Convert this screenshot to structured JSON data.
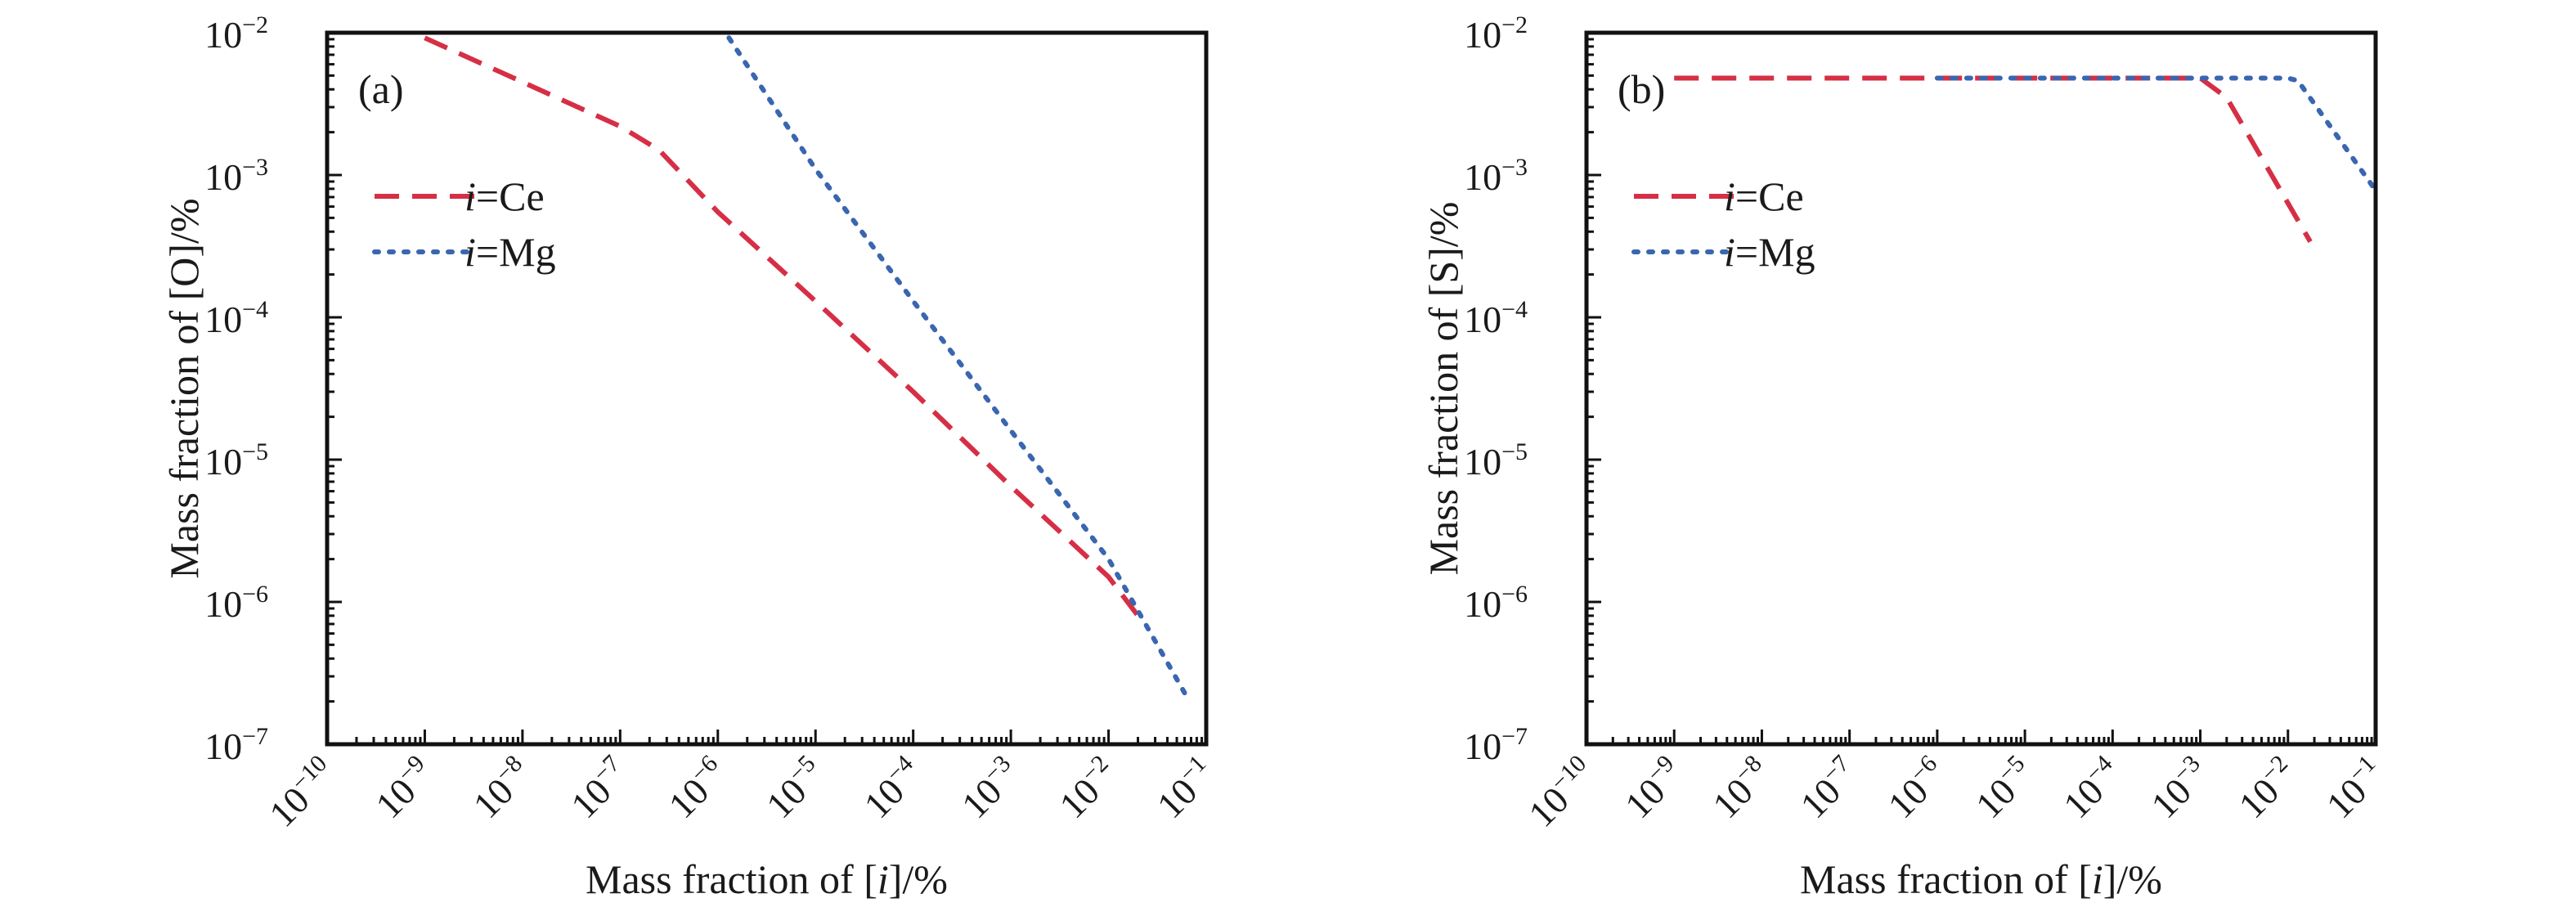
{
  "chart_data": [
    {
      "type": "line",
      "panel_label": "(a)",
      "xlabel": {
        "prefix": "Mass fraction of [",
        "italic": "i",
        "suffix": "]/%"
      },
      "ylabel": "Mass fraction of [O]/%",
      "xscale": "log",
      "yscale": "log",
      "xlim": [
        1e-10,
        0.1
      ],
      "ylim": [
        1e-07,
        0.01
      ],
      "x_tick_labels": [
        "10^-10",
        "10^-9",
        "10^-8",
        "10^-7",
        "10^-6",
        "10^-5",
        "10^-4",
        "10^-3",
        "10^-2",
        "10^-1"
      ],
      "y_tick_labels": [
        "10^-7",
        "10^-6",
        "10^-5",
        "10^-4",
        "10^-3",
        "10^-2"
      ],
      "legend_position": "upper-left",
      "series": [
        {
          "name": "i=Ce",
          "color": "#d62f45",
          "dash": "dashed",
          "x": [
            1e-09,
            1e-08,
            1e-07,
            2.5e-07,
            1e-06,
            1e-05,
            0.0001,
            0.001,
            0.01,
            0.02
          ],
          "y": [
            0.0092,
            0.0045,
            0.0022,
            0.0015,
            0.00055,
            0.00013,
            3e-05,
            6.5e-06,
            1.5e-06,
            8e-07
          ]
        },
        {
          "name": "i=Mg",
          "color": "#3a66b0",
          "dash": "dotted",
          "x": [
            1.3e-06,
            1e-05,
            0.0001,
            0.001,
            0.01,
            0.06
          ],
          "y": [
            0.0092,
            0.0011,
            0.00013,
            1.6e-05,
            2e-06,
            2.3e-07
          ]
        }
      ]
    },
    {
      "type": "line",
      "panel_label": "(b)",
      "xlabel": {
        "prefix": "Mass fraction of [",
        "italic": "i",
        "suffix": "]/%"
      },
      "ylabel": "Mass fraction of [S]/%",
      "xscale": "log",
      "yscale": "log",
      "xlim": [
        1e-10,
        0.1
      ],
      "ylim": [
        1e-07,
        0.01
      ],
      "x_tick_labels": [
        "10^-10",
        "10^-9",
        "10^-8",
        "10^-7",
        "10^-6",
        "10^-5",
        "10^-4",
        "10^-3",
        "10^-2",
        "10^-1"
      ],
      "y_tick_labels": [
        "10^-7",
        "10^-6",
        "10^-5",
        "10^-4",
        "10^-3",
        "10^-2"
      ],
      "legend_position": "upper-left",
      "series": [
        {
          "name": "i=Ce",
          "color": "#d62f45",
          "dash": "dashed",
          "x": [
            1e-09,
            1e-06,
            0.001,
            0.002,
            0.018
          ],
          "y": [
            0.0048,
            0.0048,
            0.0048,
            0.0035,
            0.00034
          ]
        },
        {
          "name": "i=Mg",
          "color": "#3a66b0",
          "dash": "dotted",
          "x": [
            1e-06,
            0.0001,
            0.01,
            0.013,
            0.1
          ],
          "y": [
            0.0048,
            0.0048,
            0.0048,
            0.0046,
            0.00078
          ]
        }
      ]
    }
  ]
}
